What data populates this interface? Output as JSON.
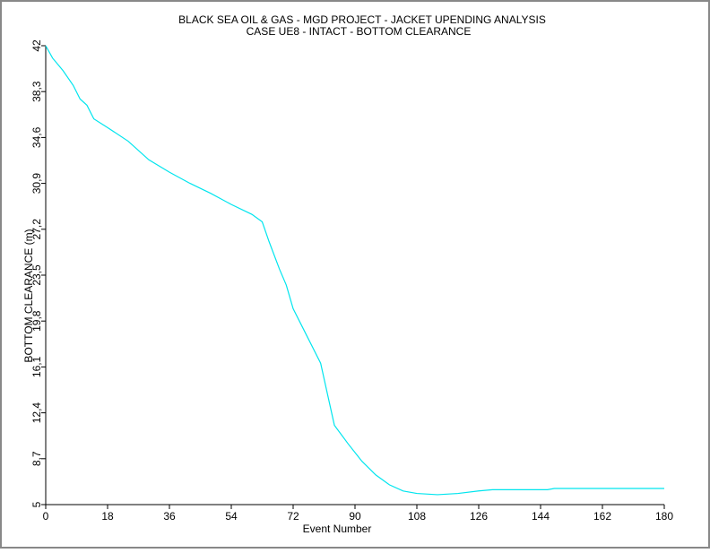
{
  "chart_data": {
    "type": "line",
    "title": "BLACK SEA OIL & GAS - MGD PROJECT - JACKET UPENDING ANALYSIS",
    "subtitle": "CASE UE8 - INTACT - BOTTOM CLEARANCE",
    "x_label": "Event Number",
    "y_label": "BOTTOM CLEARANCE (m)",
    "color": "#00e5ee",
    "x": [
      0,
      2,
      5,
      8,
      10,
      12,
      14,
      18,
      24,
      30,
      36,
      42,
      48,
      54,
      60,
      63,
      65,
      68,
      70,
      72,
      76,
      80,
      82,
      84,
      88,
      92,
      96,
      100,
      104,
      108,
      114,
      120,
      126,
      130,
      146,
      148,
      180
    ],
    "values": [
      42,
      41,
      40,
      38.8,
      37.7,
      37.2,
      36.1,
      35.4,
      34.3,
      32.8,
      31.8,
      30.9,
      30.1,
      29.2,
      28.4,
      27.8,
      26.2,
      24,
      22.7,
      20.8,
      18.6,
      16.4,
      13.9,
      11.4,
      9.9,
      8.5,
      7.4,
      6.6,
      6.1,
      5.9,
      5.8,
      5.9,
      6.1,
      6.2,
      6.2,
      6.3,
      6.3
    ],
    "xlim": [
      0,
      180
    ],
    "xticks": [
      0,
      18,
      36,
      54,
      72,
      90,
      108,
      126,
      144,
      162,
      180
    ],
    "ylim": [
      5,
      42
    ],
    "yticks": [
      5,
      {
        "value": 8.7,
        "label": "8,7"
      },
      {
        "value": 12.4,
        "label": "12,4"
      },
      {
        "value": 16.1,
        "label": "16,1"
      },
      {
        "value": 19.8,
        "label": "19,8"
      },
      {
        "value": 23.5,
        "label": "23,5"
      },
      {
        "value": 27.2,
        "label": "27,2"
      },
      {
        "value": 30.9,
        "label": "30,9"
      },
      {
        "value": 34.6,
        "label": "34,6"
      },
      {
        "value": 38.3,
        "label": "38,3"
      },
      42
    ]
  }
}
